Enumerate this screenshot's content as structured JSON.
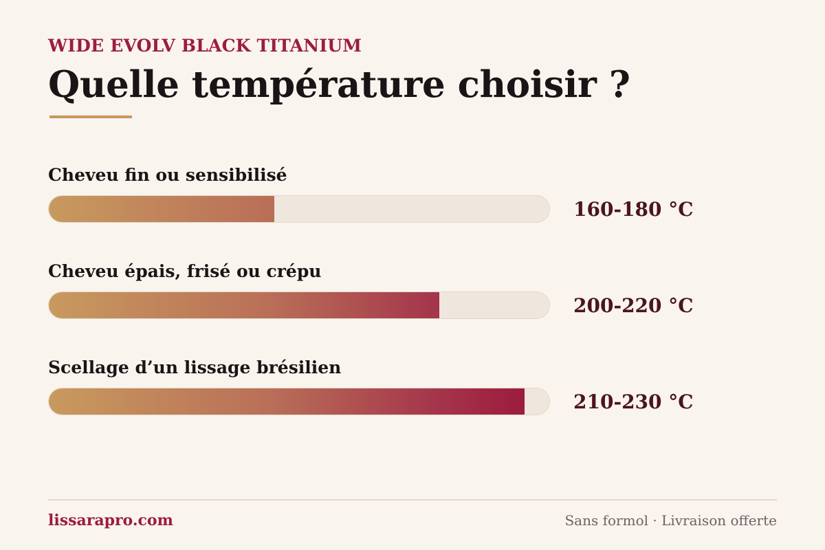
{
  "header": {
    "product": "WIDE EVOLV BLACK TITANIUM",
    "title": "Quelle température choisir ?"
  },
  "rows": [
    {
      "label": "Cheveu fin ou sensibilisé",
      "range": "160-180 °C",
      "fill_fraction": 0.45
    },
    {
      "label": "Cheveu épais, frisé ou crépu",
      "range": "200-220 °C",
      "fill_fraction": 0.78
    },
    {
      "label": "Scellage d’un lissage brésilien",
      "range": "210-230 °C",
      "fill_fraction": 0.95
    }
  ],
  "footer": {
    "site": "lissarapro.com",
    "tagline": "Sans formol · Livraison offerte"
  },
  "colors": {
    "background": "#f9f4ee",
    "accent_crimson": "#9c1c3e",
    "accent_gold": "#c8975d",
    "text_dark": "#1b1416",
    "range_text": "#4a1424"
  }
}
